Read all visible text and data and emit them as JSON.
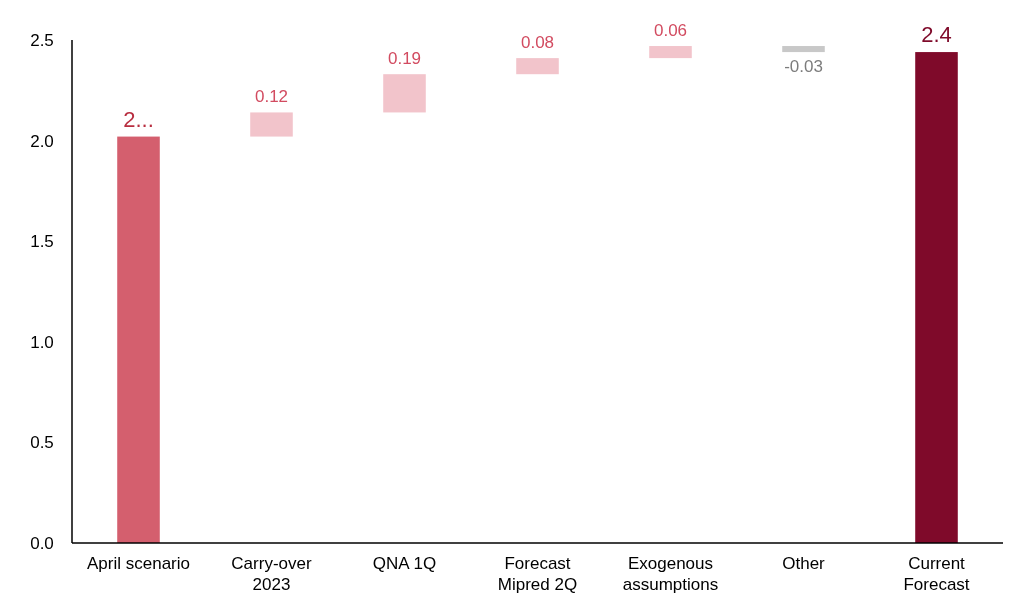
{
  "chart_data": {
    "type": "bar",
    "categories": [
      "April scenario",
      "Carry-over 2023",
      "QNA 1Q",
      "Forecast Mipred 2Q",
      "Exogenous assumptions",
      "Other",
      "Current Forecast"
    ],
    "values": [
      2.02,
      0.12,
      0.19,
      0.08,
      0.06,
      -0.03,
      2.44
    ],
    "base": [
      0,
      2.02,
      2.14,
      2.33,
      2.41,
      2.47,
      0
    ],
    "colors": [
      "#d45f6e",
      "#f2c4cb",
      "#f2c4cb",
      "#f2c4cb",
      "#f2c4cb",
      "#c8c8c8",
      "#7f0a2a"
    ],
    "value_labels": [
      "2...",
      "0.12",
      "0.19",
      "0.08",
      "0.06",
      "-0.03",
      "2.4"
    ],
    "ylim": [
      0,
      2.5
    ],
    "yticks": [
      {
        "value": 0,
        "label": "0.0"
      },
      {
        "value": 0.5,
        "label": "0.5"
      },
      {
        "value": 1,
        "label": "1.0"
      },
      {
        "value": 1.5,
        "label": "1.5"
      },
      {
        "value": 2,
        "label": "2.0"
      },
      {
        "value": 2.5,
        "label": "2.5"
      }
    ],
    "grid": false
  }
}
